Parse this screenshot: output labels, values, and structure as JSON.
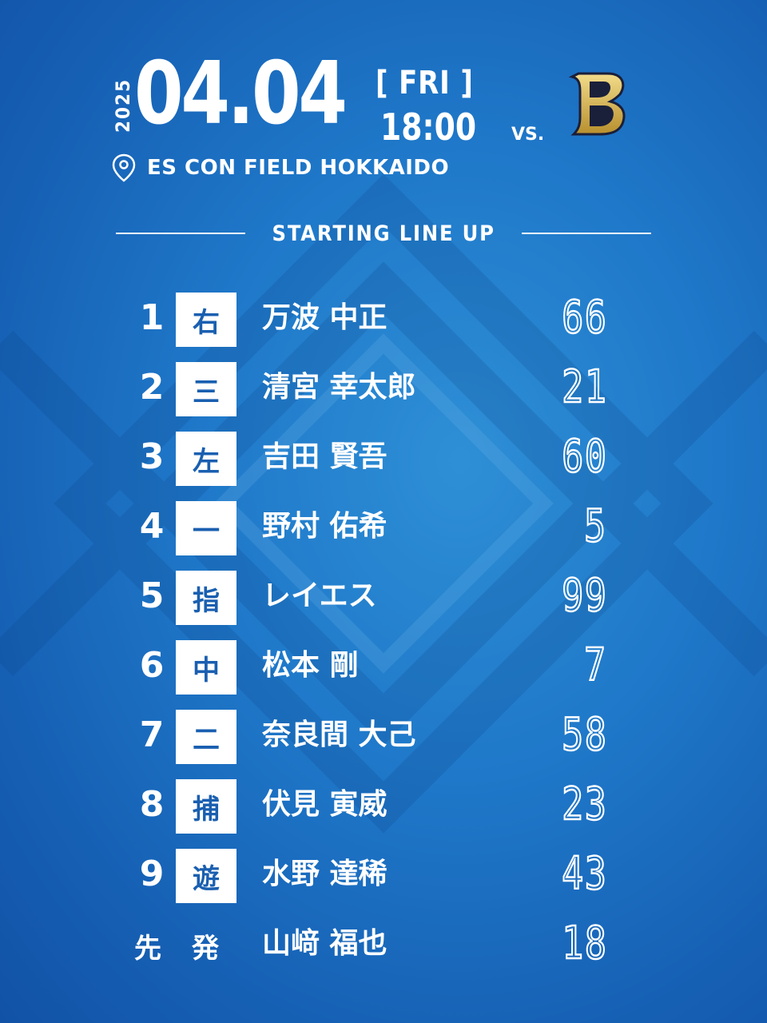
{
  "header": {
    "year": "2025",
    "date": "04.04",
    "day_of_week": "[ FRI ]",
    "time": "18:00",
    "vs": "VS.",
    "opponent_logo_letter": "B",
    "venue": "ES CON FIELD HOKKAIDO"
  },
  "section_title": "STARTING LINE UP",
  "lineup": [
    {
      "order": "1",
      "position": "右",
      "name": "万波 中正",
      "number": "66"
    },
    {
      "order": "2",
      "position": "三",
      "name": "清宮 幸太郎",
      "number": "21"
    },
    {
      "order": "3",
      "position": "左",
      "name": "吉田 賢吾",
      "number": "60"
    },
    {
      "order": "4",
      "position": "一",
      "name": "野村 佑希",
      "number": "5"
    },
    {
      "order": "5",
      "position": "指",
      "name": "レイエス",
      "number": "99"
    },
    {
      "order": "6",
      "position": "中",
      "name": "松本 剛",
      "number": "7"
    },
    {
      "order": "7",
      "position": "二",
      "name": "奈良間 大己",
      "number": "58"
    },
    {
      "order": "8",
      "position": "捕",
      "name": "伏見 寅威",
      "number": "23"
    },
    {
      "order": "9",
      "position": "遊",
      "name": "水野 達稀",
      "number": "43"
    }
  ],
  "starter": {
    "label_1": "先",
    "label_2": "発",
    "name": "山﨑 福也",
    "number": "18"
  },
  "colors": {
    "accent": "#1a5fb0",
    "background": "#1f78c9",
    "text": "#ffffff"
  },
  "icons": {
    "venue": "map-pin-icon",
    "opponent": "team-logo-icon"
  }
}
